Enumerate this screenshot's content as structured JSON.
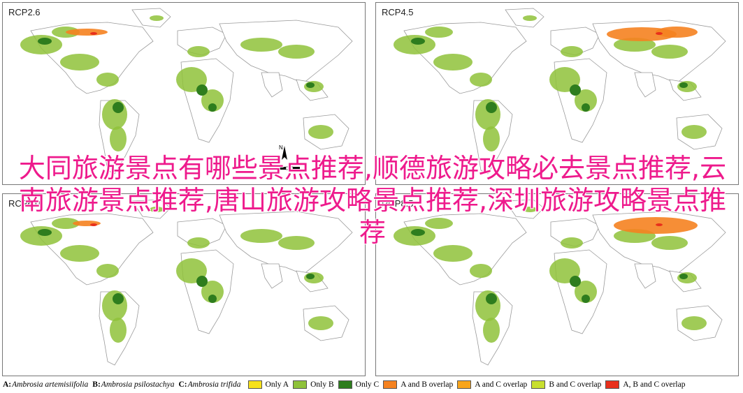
{
  "panels": [
    {
      "title": "RCP2.6",
      "ids": "p1"
    },
    {
      "title": "RCP4.5",
      "ids": "p2"
    },
    {
      "title": "RCP6.0",
      "ids": "p3"
    },
    {
      "title": "RCP8.5",
      "ids": "p4"
    }
  ],
  "north_label": "N",
  "overlay_text": "大同旅游景点有哪些景点推荐,顺德旅游攻略必去景点推荐,云南旅游景点推荐,唐山旅游攻略景点推荐,深圳旅游攻略景点推荐",
  "legend": {
    "species": [
      {
        "key": "A:",
        "name": "Ambrosia artemisiifolia"
      },
      {
        "key": "B:",
        "name": "Ambrosia psilostachya"
      },
      {
        "key": "C:",
        "name": "Ambrosia trifida"
      }
    ],
    "classes": [
      {
        "label": "Only A",
        "color": "#f7e11a"
      },
      {
        "label": "Only B",
        "color": "#8fc23a"
      },
      {
        "label": "Only C",
        "color": "#2e7d1e"
      },
      {
        "label": "A and B overlap",
        "color": "#f58220"
      },
      {
        "label": "A and C overlap",
        "color": "#f8a51c"
      },
      {
        "label": "B and C overlap",
        "color": "#c8df2f"
      },
      {
        "label": "A, B and C overlap",
        "color": "#e8301c"
      }
    ]
  },
  "colors": {
    "land_outline": "#9a9a9a",
    "suitable_green": "#8fc23a",
    "dense_green": "#2e7d1e",
    "overlap_orange": "#f58220",
    "overlap_red": "#e8301c"
  }
}
